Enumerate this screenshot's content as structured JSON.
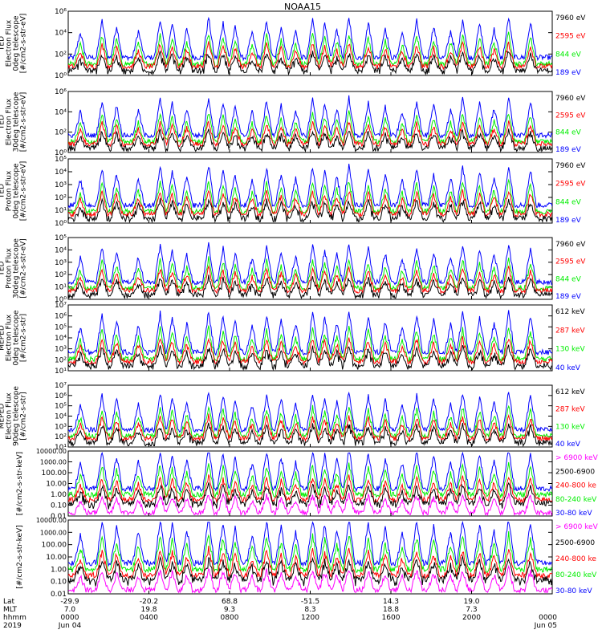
{
  "title": "NOAA15",
  "colors": {
    "black": "#000000",
    "red": "#ff0000",
    "green": "#00ee00",
    "blue": "#0000ff",
    "magenta": "#ff00ff"
  },
  "chart_data": [
    {
      "type": "line",
      "instrument": "TED",
      "ylabel": [
        "TED",
        "Electron Flux",
        "0deg telescope",
        "[#/cm2-s-str-eV]"
      ],
      "yscale": "log",
      "ylim": [
        1,
        1000000
      ],
      "yticks": [
        "10⁰",
        "10²",
        "10⁴",
        "10⁶"
      ],
      "series": [
        {
          "name": "7960 eV",
          "color": "#000000"
        },
        {
          "name": "2595 eV",
          "color": "#ff0000"
        },
        {
          "name": "844 eV",
          "color": "#00ee00"
        },
        {
          "name": "189 eV",
          "color": "#0000ff"
        }
      ]
    },
    {
      "type": "line",
      "instrument": "TED",
      "ylabel": [
        "TED",
        "Electron Flux",
        "30deg telescope",
        "[#/cm2-s-str-eV]"
      ],
      "yscale": "log",
      "ylim": [
        1,
        1000000
      ],
      "yticks": [
        "10⁰",
        "10²",
        "10⁴",
        "10⁶"
      ],
      "series": [
        {
          "name": "7960 eV",
          "color": "#000000"
        },
        {
          "name": "2595 eV",
          "color": "#ff0000"
        },
        {
          "name": "844 eV",
          "color": "#00ee00"
        },
        {
          "name": "189 eV",
          "color": "#0000ff"
        }
      ]
    },
    {
      "type": "line",
      "instrument": "TED",
      "ylabel": [
        "TED",
        "Proton Flux",
        "0deg telescope",
        "[#/cm2-s-str-eV]"
      ],
      "yscale": "log",
      "ylim": [
        1,
        100000
      ],
      "yticks": [
        "10⁰",
        "10¹",
        "10²",
        "10³",
        "10⁴",
        "10⁵"
      ],
      "series": [
        {
          "name": "7960 eV",
          "color": "#000000"
        },
        {
          "name": "2595 eV",
          "color": "#ff0000"
        },
        {
          "name": "844 eV",
          "color": "#00ee00"
        },
        {
          "name": "189 eV",
          "color": "#0000ff"
        }
      ]
    },
    {
      "type": "line",
      "instrument": "TED",
      "ylabel": [
        "TED",
        "Proton Flux",
        "30deg telescope",
        "[#/cm2-s-str-eV]"
      ],
      "yscale": "log",
      "ylim": [
        1,
        100000
      ],
      "yticks": [
        "10⁰",
        "10¹",
        "10²",
        "10³",
        "10⁴",
        "10⁵"
      ],
      "series": [
        {
          "name": "7960 eV",
          "color": "#000000"
        },
        {
          "name": "2595 eV",
          "color": "#ff0000"
        },
        {
          "name": "844 eV",
          "color": "#00ee00"
        },
        {
          "name": "189 eV",
          "color": "#0000ff"
        }
      ]
    },
    {
      "type": "line",
      "instrument": "MEPED",
      "ylabel": [
        "MEPED",
        "Electron Flux",
        "0deg telescope",
        "[#/cm2-s-str]"
      ],
      "yscale": "log",
      "ylim": [
        10,
        10000000
      ],
      "yticks": [
        "10¹",
        "10²",
        "10³",
        "10⁴",
        "10⁵",
        "10⁶",
        "10⁷"
      ],
      "series": [
        {
          "name": "612 keV",
          "color": "#000000"
        },
        {
          "name": "287 keV",
          "color": "#ff0000"
        },
        {
          "name": "130 keV",
          "color": "#00ee00"
        },
        {
          "name": "40 keV",
          "color": "#0000ff"
        }
      ]
    },
    {
      "type": "line",
      "instrument": "MEPED",
      "ylabel": [
        "MEPED",
        "Electron Flux",
        "90deg telescope",
        "[#/cm2-s-str]"
      ],
      "yscale": "log",
      "ylim": [
        10,
        10000000
      ],
      "yticks": [
        "10¹",
        "10²",
        "10³",
        "10⁴",
        "10⁵",
        "10⁶",
        "10⁷"
      ],
      "series": [
        {
          "name": "612 keV",
          "color": "#000000"
        },
        {
          "name": "287 keV",
          "color": "#ff0000"
        },
        {
          "name": "130 keV",
          "color": "#00ee00"
        },
        {
          "name": "40 keV",
          "color": "#0000ff"
        }
      ]
    },
    {
      "type": "line",
      "instrument": "MEPED",
      "ylabel": [
        "[#/cm2-s-str-keV]"
      ],
      "yscale": "log",
      "ylim": [
        0.01,
        10000
      ],
      "yticks": [
        "0.01",
        "0.10",
        "1.00",
        "10.00",
        "100.00",
        "1000.00",
        "10000.00"
      ],
      "series": [
        {
          "name": "> 6900 keV",
          "color": "#ff00ff"
        },
        {
          "name": "2500-6900",
          "color": "#000000"
        },
        {
          "name": "240-800 ke",
          "color": "#ff0000"
        },
        {
          "name": "80-240 keV",
          "color": "#00ee00"
        },
        {
          "name": "30-80 keV",
          "color": "#0000ff"
        }
      ]
    },
    {
      "type": "line",
      "instrument": "MEPED",
      "ylabel": [
        "[#/cm2-s-str-keV]"
      ],
      "yscale": "log",
      "ylim": [
        0.01,
        10000
      ],
      "yticks": [
        "0.01",
        "0.10",
        "1.00",
        "10.00",
        "100.00",
        "1000.00",
        "10000.00"
      ],
      "series": [
        {
          "name": "> 6900 keV",
          "color": "#ff00ff"
        },
        {
          "name": "2500-6900",
          "color": "#000000"
        },
        {
          "name": "240-800 ke",
          "color": "#ff0000"
        },
        {
          "name": "80-240 keV",
          "color": "#00ee00"
        },
        {
          "name": "30-80 keV",
          "color": "#0000ff"
        }
      ]
    }
  ],
  "x_axis": {
    "row_labels": [
      "Lat",
      "MLT",
      "hhmm",
      "2019"
    ],
    "ticks": [
      {
        "lat": "-29.9",
        "mlt": "7.0",
        "hhmm": "0000",
        "date": "Jun 04"
      },
      {
        "lat": "-20.2",
        "mlt": "19.8",
        "hhmm": "0400",
        "date": ""
      },
      {
        "lat": "68.8",
        "mlt": "9.3",
        "hhmm": "0800",
        "date": ""
      },
      {
        "lat": "-51.5",
        "mlt": "8.3",
        "hhmm": "1200",
        "date": ""
      },
      {
        "lat": "14.3",
        "mlt": "18.8",
        "hhmm": "1600",
        "date": ""
      },
      {
        "lat": "19.0",
        "mlt": "7.3",
        "hhmm": "2000",
        "date": ""
      },
      {
        "lat": "",
        "mlt": "",
        "hhmm": "0000",
        "date": "Jun 05"
      }
    ]
  }
}
